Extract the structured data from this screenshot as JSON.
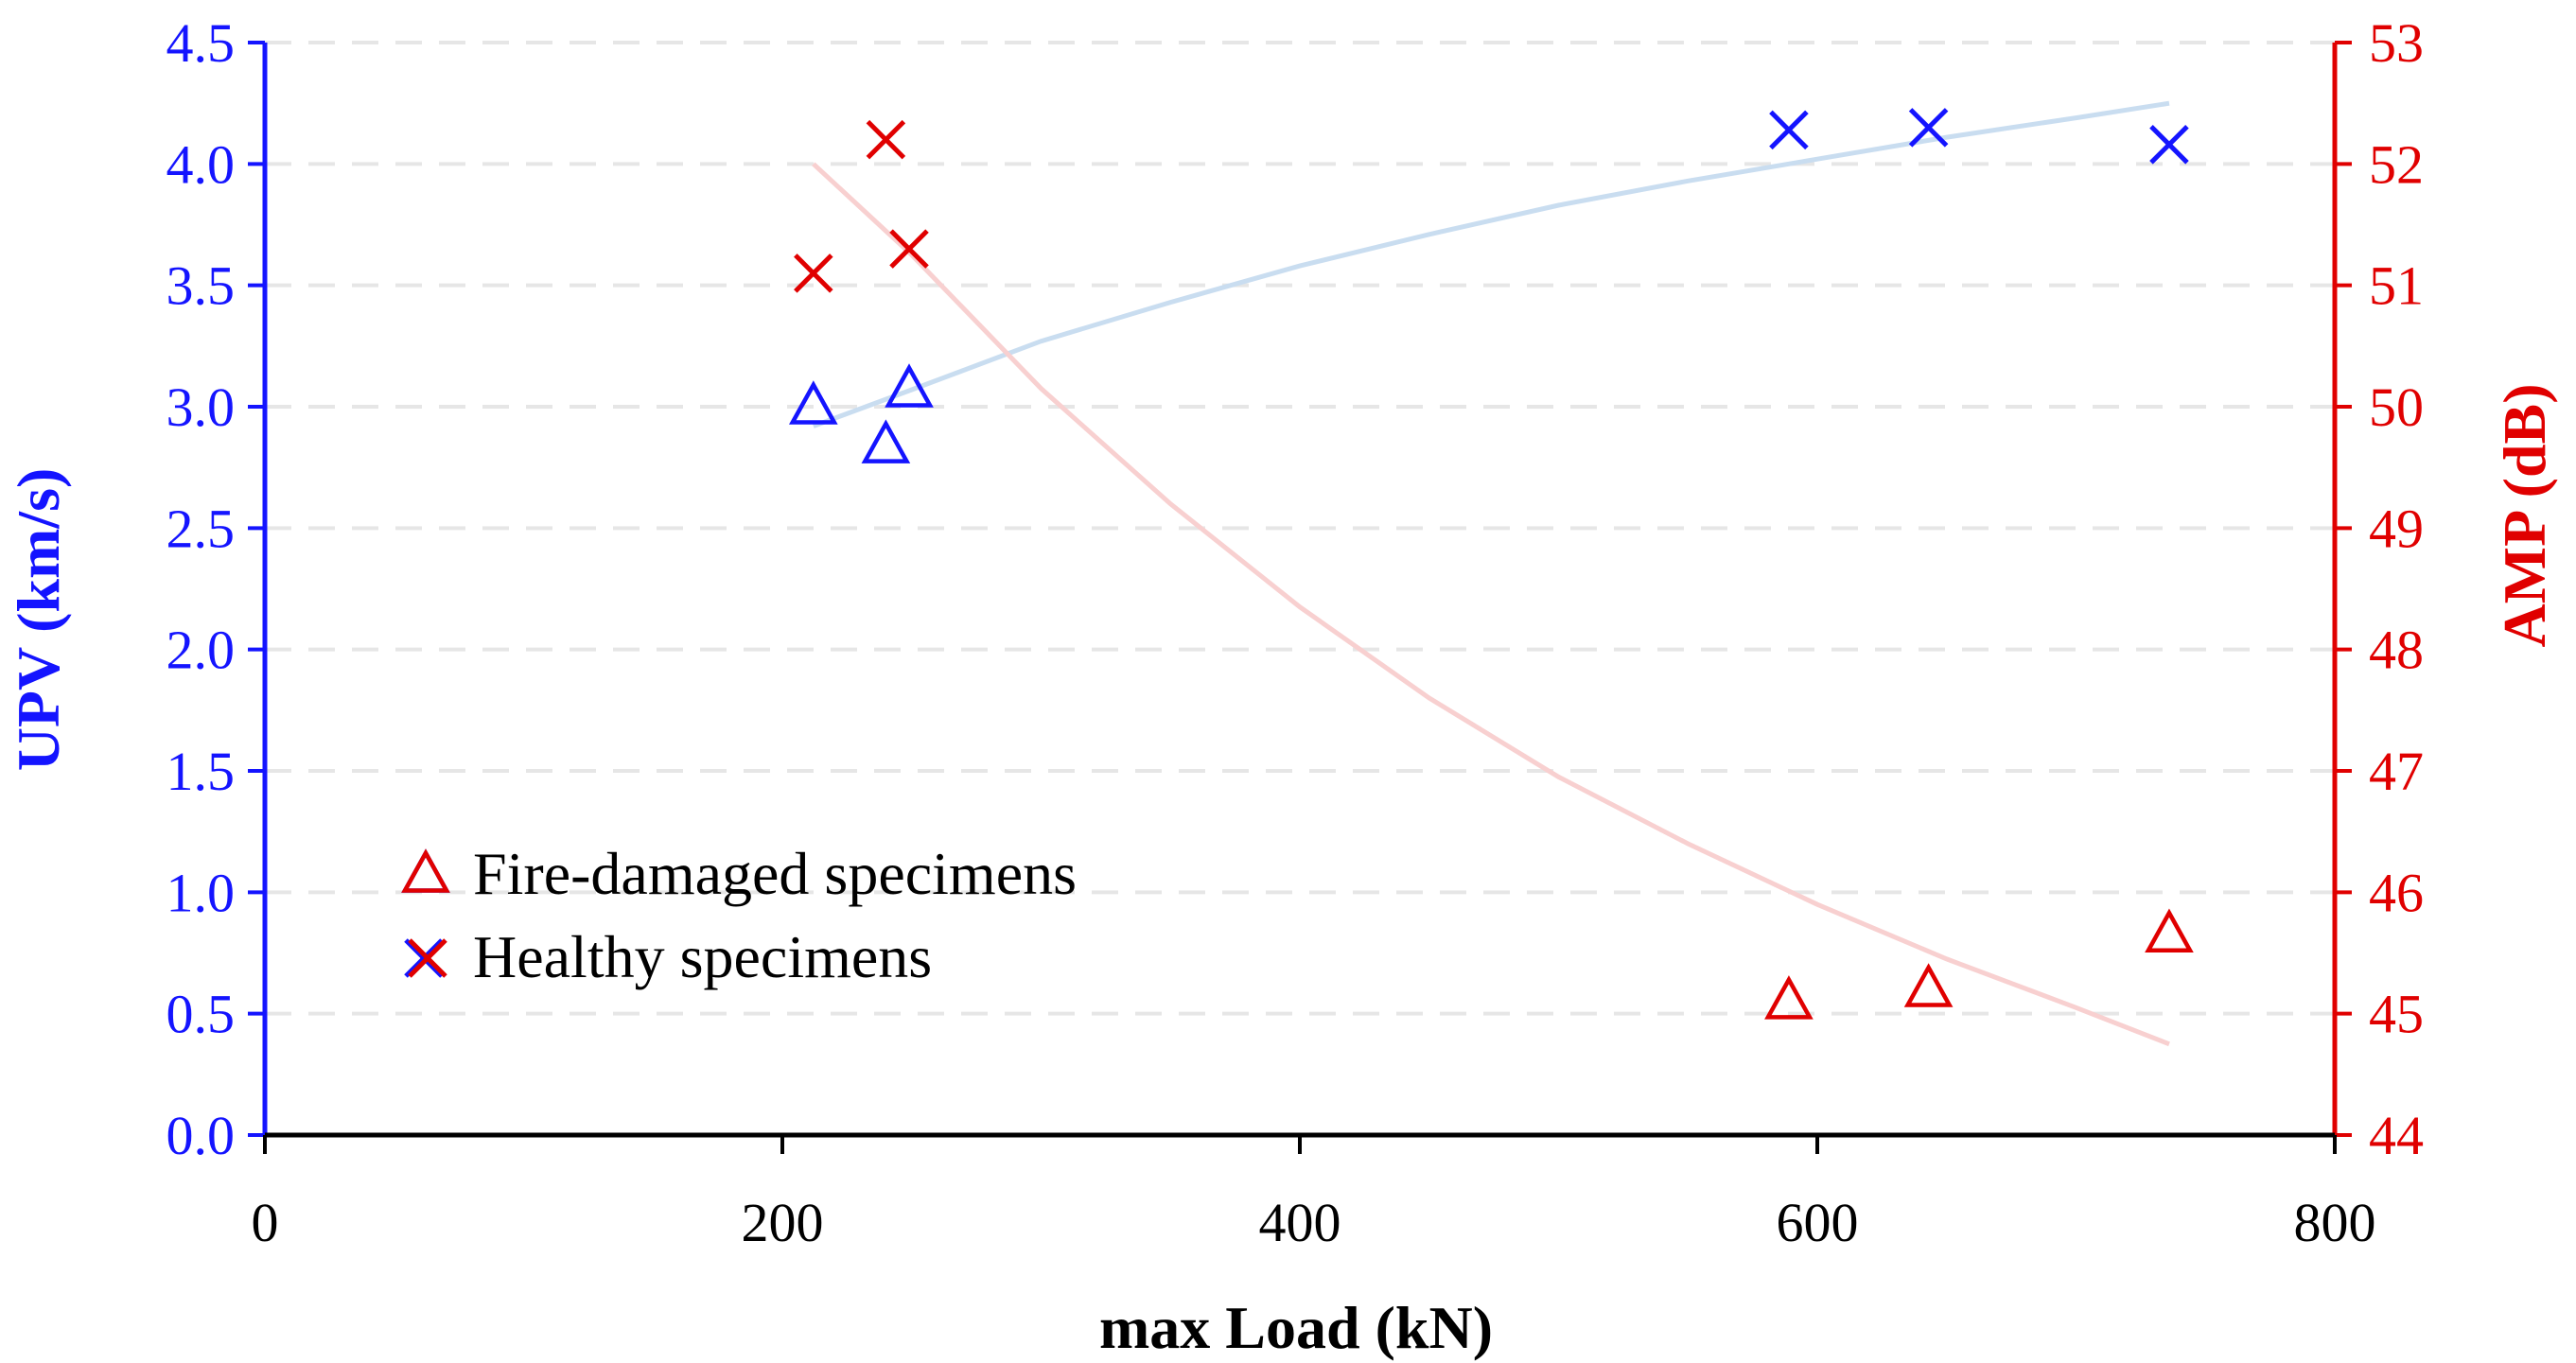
{
  "chart_data": {
    "type": "scatter",
    "title": "",
    "xlabel": "max Load (kN)",
    "ylabel": "UPV (km/s)",
    "y2label": "AMP (dB)",
    "xlim": [
      0,
      800
    ],
    "ylim": [
      0,
      4.5
    ],
    "y2lim": [
      44,
      53
    ],
    "x_ticks": [
      "0",
      "200",
      "400",
      "600",
      "800"
    ],
    "y_ticks": [
      "0.0",
      "0.5",
      "1.0",
      "1.5",
      "2.0",
      "2.5",
      "3.0",
      "3.5",
      "4.0",
      "4.5"
    ],
    "y2_ticks": [
      "44",
      "45",
      "46",
      "47",
      "48",
      "49",
      "50",
      "51",
      "52",
      "53"
    ],
    "grid": "horizontal dashed",
    "legend_position": "lower-left",
    "colors": {
      "upv": "#1414ff",
      "amp": "#e00000",
      "upv_trend": "#c9ddf0",
      "amp_trend": "#f8d0d0"
    },
    "series": [
      {
        "name": "UPV fire-damaged",
        "axis": "left",
        "marker": "triangle",
        "x": [
          212,
          240,
          249
        ],
        "y": [
          3.0,
          2.84,
          3.07
        ]
      },
      {
        "name": "UPV healthy",
        "axis": "left",
        "marker": "x",
        "x": [
          589,
          643,
          736
        ],
        "y": [
          4.14,
          4.15,
          4.08
        ]
      },
      {
        "name": "AMP fire-damaged",
        "axis": "right",
        "marker": "triangle",
        "x": [
          589,
          643,
          736
        ],
        "y": [
          45.1,
          45.2,
          45.65
        ]
      },
      {
        "name": "AMP healthy",
        "axis": "right",
        "marker": "x",
        "x": [
          212,
          240,
          249
        ],
        "y": [
          51.1,
          52.2,
          51.3
        ]
      }
    ],
    "trendlines": [
      {
        "name": "UPV trend",
        "axis": "left",
        "x": [
          212,
          250,
          300,
          350,
          400,
          450,
          500,
          550,
          600,
          650,
          700,
          736
        ],
        "y": [
          2.92,
          3.07,
          3.27,
          3.43,
          3.58,
          3.71,
          3.83,
          3.93,
          4.02,
          4.11,
          4.19,
          4.25
        ]
      },
      {
        "name": "AMP trend",
        "axis": "right",
        "x": [
          212,
          250,
          300,
          350,
          400,
          450,
          500,
          550,
          600,
          650,
          700,
          736
        ],
        "y": [
          52.0,
          51.25,
          50.15,
          49.2,
          48.35,
          47.6,
          46.95,
          46.4,
          45.9,
          45.45,
          45.05,
          44.75
        ]
      }
    ],
    "legend": [
      {
        "label": "Fire-damaged specimens",
        "marker": "triangle"
      },
      {
        "label": "Healthy specimens",
        "marker": "x"
      }
    ]
  }
}
